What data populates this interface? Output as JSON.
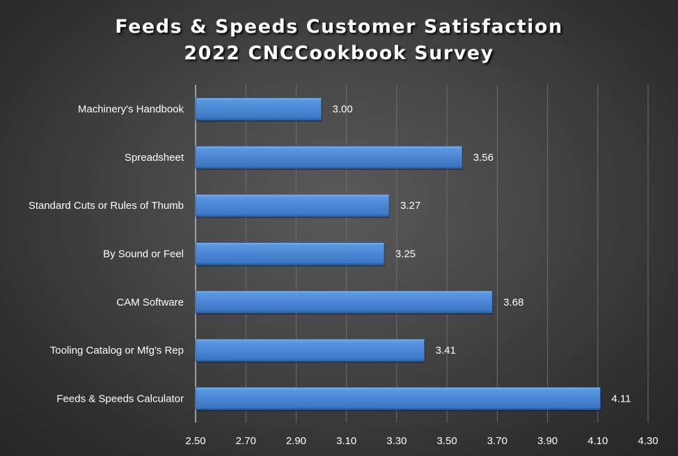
{
  "chart_data": {
    "type": "bar",
    "orientation": "horizontal",
    "title": "Feeds & Speeds Customer Satisfaction",
    "subtitle": "2022 CNCCookbook Survey",
    "categories": [
      "Machinery's Handbook",
      "Spreadsheet",
      "Standard Cuts or Rules of Thumb",
      "By Sound or Feel",
      "CAM Software",
      "Tooling Catalog or Mfg's Rep",
      "Feeds & Speeds Calculator"
    ],
    "values": [
      3.0,
      3.56,
      3.27,
      3.25,
      3.68,
      3.41,
      4.11
    ],
    "data_labels": [
      "3.00",
      "3.56",
      "3.27",
      "3.25",
      "3.68",
      "3.41",
      "4.11"
    ],
    "xlim": [
      2.5,
      4.3
    ],
    "xticks": [
      "2.50",
      "2.70",
      "2.90",
      "3.10",
      "3.30",
      "3.50",
      "3.70",
      "3.90",
      "4.10",
      "4.30"
    ],
    "grid": true,
    "legend": "none",
    "bar_color": "#4a86d4",
    "background": "#3c3c3c"
  }
}
